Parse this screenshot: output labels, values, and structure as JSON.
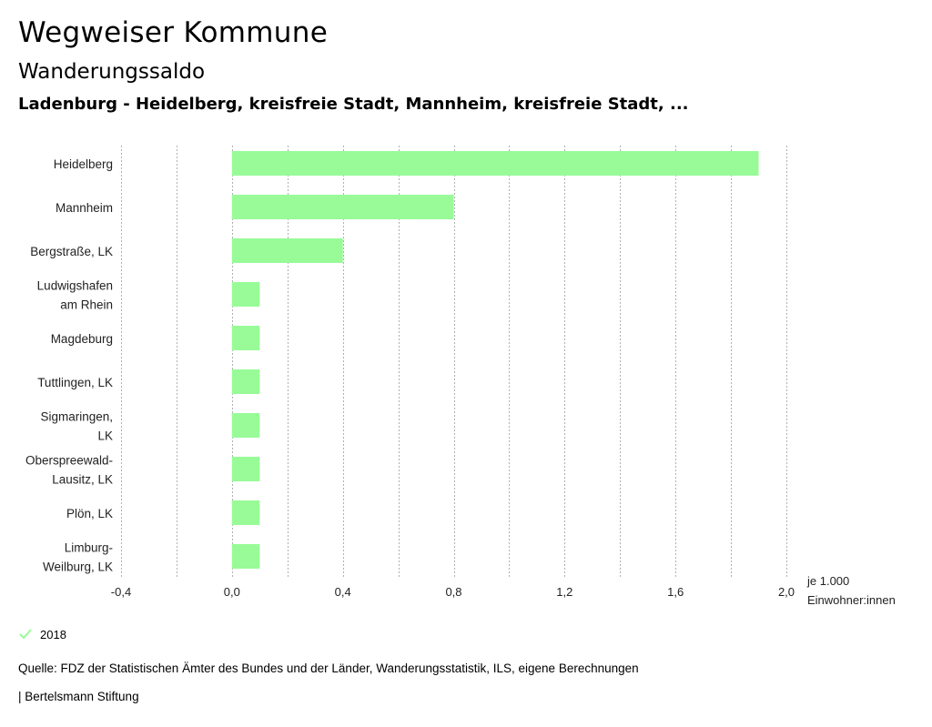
{
  "header": {
    "title": "Wegweiser Kommune",
    "subtitle": "Wanderungssaldo",
    "region": "Ladenburg - Heidelberg, kreisfreie Stadt, Mannheim, kreisfreie Stadt, ..."
  },
  "chart_data": {
    "type": "bar",
    "orientation": "horizontal",
    "categories": [
      [
        "Heidelberg"
      ],
      [
        "Mannheim"
      ],
      [
        "Bergstraße, LK"
      ],
      [
        "Ludwigshafen",
        "am Rhein"
      ],
      [
        "Magdeburg"
      ],
      [
        "Tuttlingen, LK"
      ],
      [
        "Sigmaringen,",
        "LK"
      ],
      [
        "Oberspreewald-",
        "Lausitz, LK"
      ],
      [
        "Plön, LK"
      ],
      [
        "Limburg-",
        "Weilburg, LK"
      ]
    ],
    "series": [
      {
        "name": "2018",
        "values": [
          1.9,
          0.8,
          0.4,
          0.1,
          0.1,
          0.1,
          0.1,
          0.1,
          0.1,
          0.1
        ],
        "color": "#98fb98"
      }
    ],
    "xlim": [
      -0.4,
      2.0
    ],
    "ticks": [
      "-0,4",
      "0,0",
      "0,4",
      "0,8",
      "1,2",
      "1,6",
      "2,0"
    ],
    "tick_values": [
      -0.4,
      0.0,
      0.4,
      0.8,
      1.2,
      1.6,
      2.0
    ],
    "gridlines": [
      -0.4,
      -0.2,
      0.0,
      0.2,
      0.4,
      0.6,
      0.8,
      1.0,
      1.2,
      1.4,
      1.6,
      1.8,
      2.0
    ],
    "unit_label": [
      "je 1.000",
      "Einwohner:innen"
    ]
  },
  "legend": {
    "label": "2018",
    "color": "#98fb98"
  },
  "source": "Quelle: FDZ der Statistischen Ämter des Bundes und der Länder, Wanderungsstatistik, ILS, eigene Berechnungen",
  "footer": "| Bertelsmann Stiftung"
}
